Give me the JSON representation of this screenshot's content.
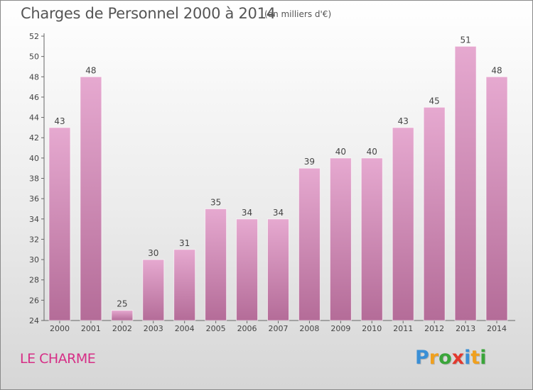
{
  "header": {
    "title": "Charges de Personnel 2000 à 2014",
    "unit_note": "(en milliers d'€)"
  },
  "footer": {
    "commune": "LE CHARME",
    "logo_text": "Proxiti"
  },
  "colors": {
    "bar_top": "#e6a9d0",
    "bar_bottom": "#b46c98",
    "commune_text": "#d62e86",
    "logo_letters": [
      "#3a8fd6",
      "#f0a01e",
      "#3aa53a",
      "#e2392e",
      "#3a8fd6",
      "#f0a01e",
      "#3aa53a"
    ]
  },
  "chart_data": {
    "type": "bar",
    "categories": [
      "2000",
      "2001",
      "2002",
      "2003",
      "2004",
      "2005",
      "2006",
      "2007",
      "2008",
      "2009",
      "2010",
      "2011",
      "2012",
      "2013",
      "2014"
    ],
    "values": [
      43,
      48,
      25,
      30,
      31,
      35,
      34,
      34,
      39,
      40,
      40,
      43,
      45,
      51,
      48
    ],
    "yticks": [
      24,
      26,
      28,
      30,
      32,
      34,
      36,
      38,
      40,
      42,
      44,
      46,
      48,
      50,
      52
    ],
    "ylim": [
      24,
      52
    ],
    "grid": false,
    "data_labels": true
  }
}
